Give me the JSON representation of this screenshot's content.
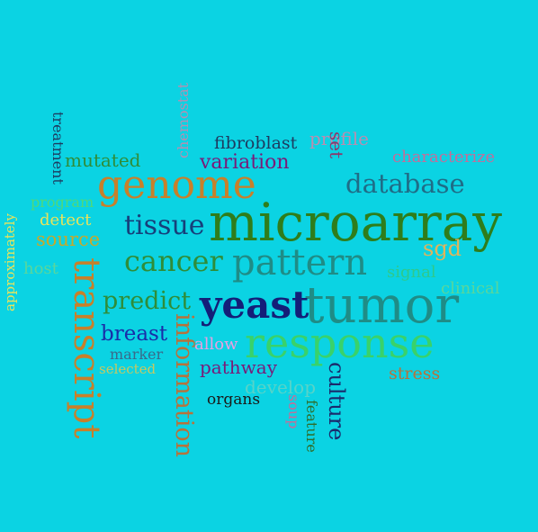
{
  "background_color": "#0bd3e3",
  "words": [
    {
      "id": "microarray",
      "text": "microarray",
      "color": "#2f7d1b"
    },
    {
      "id": "tumor",
      "text": "tumor",
      "color": "#1f8c86"
    },
    {
      "id": "response",
      "text": "response",
      "color": "#39d26a"
    },
    {
      "id": "genome",
      "text": "genome",
      "color": "#c8802a"
    },
    {
      "id": "pattern",
      "text": "pattern",
      "color": "#1f8c86"
    },
    {
      "id": "transcript",
      "text": "transcript",
      "color": "#c8802a"
    },
    {
      "id": "yeast",
      "text": "yeast",
      "color": "#141e78"
    },
    {
      "id": "information",
      "text": "information",
      "color": "#b8723a"
    },
    {
      "id": "cancer",
      "text": "cancer",
      "color": "#2f8d39"
    },
    {
      "id": "tissue",
      "text": "tissue",
      "color": "#173f7a"
    },
    {
      "id": "database",
      "text": "database",
      "color": "#1f6d87"
    },
    {
      "id": "culture",
      "text": "culture",
      "color": "#1b2a6c"
    },
    {
      "id": "predict",
      "text": "predict",
      "color": "#2f8d39"
    },
    {
      "id": "breast",
      "text": "breast",
      "color": "#1a2da8"
    },
    {
      "id": "variation",
      "text": "variation",
      "color": "#7a1a78"
    },
    {
      "id": "pathway",
      "text": "pathway",
      "color": "#7a1a78"
    },
    {
      "id": "mutated",
      "text": "mutated",
      "color": "#2f8d39"
    },
    {
      "id": "characterize",
      "text": "characterize",
      "color": "#c46e9a"
    },
    {
      "id": "fibroblast",
      "text": "fibroblast",
      "color": "#1e3a5f"
    },
    {
      "id": "set",
      "text": "set",
      "color": "#8a3a6e"
    },
    {
      "id": "profile",
      "text": "profile",
      "color": "#b88eb0"
    },
    {
      "id": "sgd",
      "text": "sgd",
      "color": "#e2b45a"
    },
    {
      "id": "signal",
      "text": "signal",
      "color": "#2ec98c"
    },
    {
      "id": "clinical",
      "text": "clinical",
      "color": "#5ad69c"
    },
    {
      "id": "detect",
      "text": "detect",
      "color": "#e9e35a"
    },
    {
      "id": "source",
      "text": "source",
      "color": "#c8a82a"
    },
    {
      "id": "program",
      "text": "program",
      "color": "#4fd87a"
    },
    {
      "id": "host",
      "text": "host",
      "color": "#5ad69c"
    },
    {
      "id": "treatment",
      "text": "treatment",
      "color": "#1e3a5f"
    },
    {
      "id": "chemostat",
      "text": "chemostat",
      "color": "#b88eb0"
    },
    {
      "id": "approximately",
      "text": "approximately",
      "color": "#e9e35a"
    },
    {
      "id": "allow",
      "text": "allow",
      "color": "#e9a0e0"
    },
    {
      "id": "marker",
      "text": "marker",
      "color": "#3a6a8a"
    },
    {
      "id": "selected",
      "text": "selected",
      "color": "#c8c860"
    },
    {
      "id": "develop",
      "text": "develop",
      "color": "#58d3c8"
    },
    {
      "id": "organs",
      "text": "organs",
      "color": "#1a1a1a"
    },
    {
      "id": "stress",
      "text": "stress",
      "color": "#b8723a"
    },
    {
      "id": "feature",
      "text": "feature",
      "color": "#2f6d2a"
    },
    {
      "id": "soup",
      "text": "soup",
      "color": "#c46e9a"
    }
  ]
}
